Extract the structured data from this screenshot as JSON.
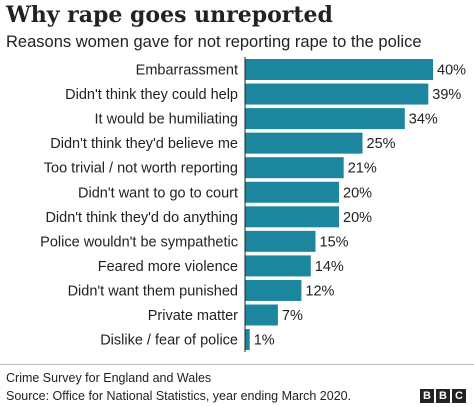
{
  "title": "Why rape goes unreported",
  "subtitle": "Reasons women gave for not reporting rape to the police",
  "note": "Crime Survey for England and Wales",
  "source": "Source: Office for National Statistics, year ending March 2020.",
  "logo": [
    "B",
    "B",
    "C"
  ],
  "colors": {
    "bar": "#1b869e",
    "text": "#222222",
    "axis": "#222222"
  },
  "chart_data": {
    "type": "bar",
    "orientation": "horizontal",
    "title": "Why rape goes unreported",
    "subtitle": "Reasons women gave for not reporting rape to the police",
    "categories": [
      "Embarrassment",
      "Didn't think they could help",
      "It would be humiliating",
      "Didn't think they'd believe me",
      "Too trivial / not worth reporting",
      "Didn't want to go to court",
      "Didn't think they'd do anything",
      "Police wouldn't be sympathetic",
      "Feared more violence",
      "Didn't want them punished",
      "Private matter",
      "Dislike / fear of police"
    ],
    "values": [
      40,
      39,
      34,
      25,
      21,
      20,
      20,
      15,
      14,
      12,
      7,
      1
    ],
    "value_labels": [
      "40%",
      "39%",
      "34%",
      "25%",
      "21%",
      "20%",
      "20%",
      "15%",
      "14%",
      "12%",
      "7%",
      "1%"
    ],
    "xlim": [
      0,
      40
    ],
    "grid": false
  }
}
